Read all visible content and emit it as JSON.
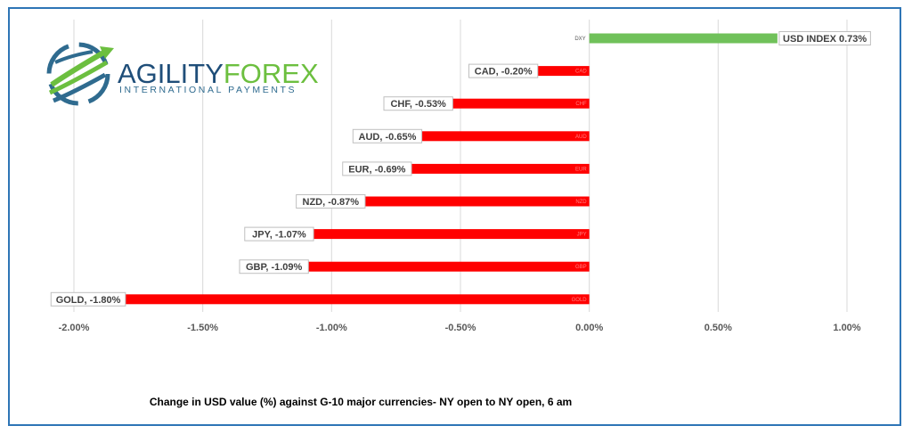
{
  "logo": {
    "brand_part1": "AGILITY",
    "brand_part2": "FOREX",
    "tagline": "INTERNATIONAL PAYMENTS",
    "colors": {
      "blue": "#2f6b8f",
      "green": "#6cbf3f",
      "navy": "#1f4e79"
    }
  },
  "caption": "Change in  USD value (%)  against  G-10 major currencies- NY open to NY open, 6 am",
  "chart_data": {
    "type": "bar",
    "orientation": "horizontal",
    "xlim": [
      -2.0,
      1.0
    ],
    "x_ticks": [
      "-2.00%",
      "-1.50%",
      "-1.00%",
      "-0.50%",
      "0.00%",
      "0.50%",
      "1.00%"
    ],
    "grid": "vertical",
    "bars": [
      {
        "category": "DXY",
        "value": 0.73,
        "label": "USD INDEX 0.73%",
        "color": "#70c15a"
      },
      {
        "category": "CAD",
        "value": -0.2,
        "label": "CAD, -0.20%",
        "color": "#ff0000"
      },
      {
        "category": "CHF",
        "value": -0.53,
        "label": "CHF, -0.53%",
        "color": "#ff0000"
      },
      {
        "category": "AUD",
        "value": -0.65,
        "label": "AUD, -0.65%",
        "color": "#ff0000"
      },
      {
        "category": "EUR",
        "value": -0.69,
        "label": "EUR, -0.69%",
        "color": "#ff0000"
      },
      {
        "category": "NZD",
        "value": -0.87,
        "label": "NZD, -0.87%",
        "color": "#ff0000"
      },
      {
        "category": "JPY",
        "value": -1.07,
        "label": "JPY, -1.07%",
        "color": "#ff0000"
      },
      {
        "category": "GBP",
        "value": -1.09,
        "label": "GBP, -1.09%",
        "color": "#ff0000"
      },
      {
        "category": "GOLD",
        "value": -1.8,
        "label": "GOLD, -1.80%",
        "color": "#ff0000"
      }
    ]
  }
}
